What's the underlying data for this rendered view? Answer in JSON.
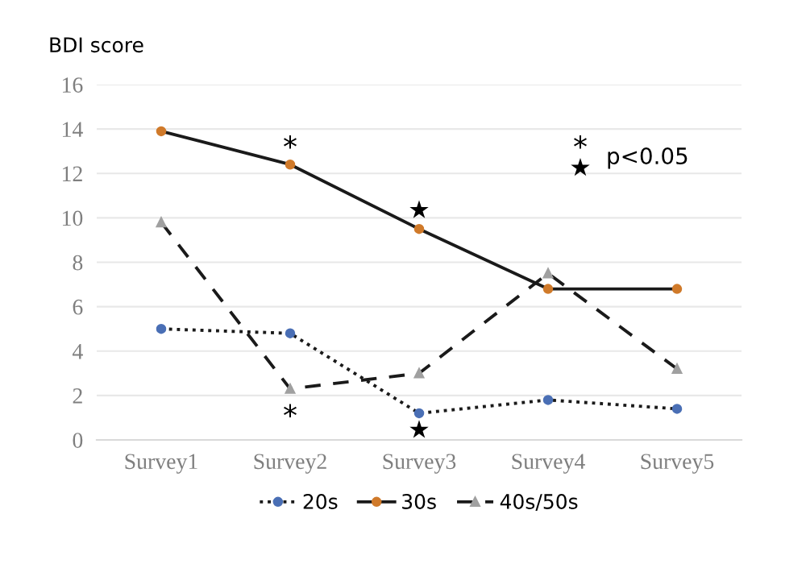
{
  "chart_data": {
    "type": "line",
    "ylabel": "BDI score",
    "categories": [
      "Survey1",
      "Survey2",
      "Survey3",
      "Survey4",
      "Survey5"
    ],
    "series": [
      {
        "name": "20s",
        "color": "#4a6fb5",
        "line_style": "dotted",
        "marker": "circle",
        "values": [
          5.0,
          4.8,
          1.2,
          1.8,
          1.4
        ]
      },
      {
        "name": "30s",
        "color": "#d07a2a",
        "line_style": "solid",
        "marker": "circle",
        "values": [
          13.9,
          12.4,
          9.5,
          6.8,
          6.8
        ]
      },
      {
        "name": "40s/50s",
        "color": "#a0a0a0",
        "line_style": "dashed",
        "marker": "triangle",
        "values": [
          9.8,
          2.3,
          3.0,
          7.5,
          3.2
        ]
      }
    ],
    "ylim": [
      0,
      16
    ],
    "yticks": [
      0,
      2,
      4,
      6,
      8,
      10,
      12,
      14,
      16
    ],
    "grid": "y",
    "legend": "bottom",
    "annotations": [
      "*",
      "*",
      "★",
      "★",
      "*",
      "★",
      "p<0.05"
    ]
  }
}
